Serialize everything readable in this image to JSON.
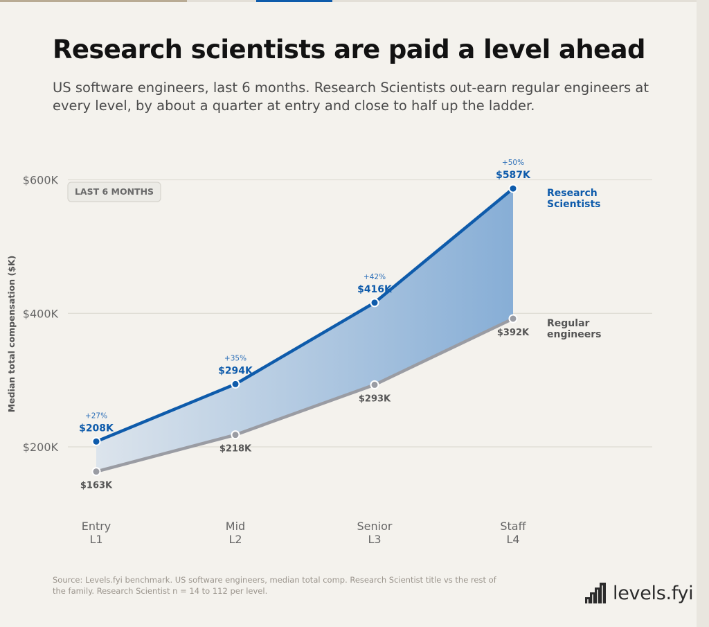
{
  "title": "Research scientists are paid a level ahead",
  "subtitle": "US software engineers, last 6 months. Research Scientists out-earn regular engineers at every level, by about a quarter at entry and close to half up the ladder.",
  "badge": "LAST 6 MONTHS",
  "source": "Source: Levels.fyi benchmark. US software engineers, median total comp. Research Scientist title vs the rest of the family. Research Scientist n = 14 to 112 per level.",
  "logo": {
    "text": "levels.fyi",
    "icon": "staircase-icon"
  },
  "colors": {
    "research": "#0e5bab",
    "regular": "#9a9ca3",
    "grid": "#dedbd3",
    "axis_text": "#666666",
    "pct_text": "#2c6fb8"
  },
  "chart_data": {
    "type": "line",
    "ylabel": "Median total compensation ($K)",
    "ylim": [
      90,
      640
    ],
    "yticks": [
      200,
      400,
      600
    ],
    "ytick_labels": [
      "$200K",
      "$400K",
      "$600K"
    ],
    "grid": true,
    "categories": [
      "Entry L1",
      "Mid L2",
      "Senior L3",
      "Staff L4"
    ],
    "category_lines": [
      [
        "Entry",
        "L1"
      ],
      [
        "Mid",
        "L2"
      ],
      [
        "Senior",
        "L3"
      ],
      [
        "Staff",
        "L4"
      ]
    ],
    "series": [
      {
        "name": "Research Scientists",
        "name_lines": [
          "Research",
          "Scientists"
        ],
        "values": [
          208,
          294,
          416,
          587
        ],
        "labels": [
          "$208K",
          "$294K",
          "$416K",
          "$587K"
        ],
        "premium": [
          "+27%",
          "+35%",
          "+42%",
          "+50%"
        ]
      },
      {
        "name": "Regular engineers",
        "name_lines": [
          "Regular",
          "engineers"
        ],
        "values": [
          163,
          218,
          293,
          392
        ],
        "labels": [
          "$163K",
          "$218K",
          "$293K",
          "$392K"
        ]
      }
    ]
  }
}
